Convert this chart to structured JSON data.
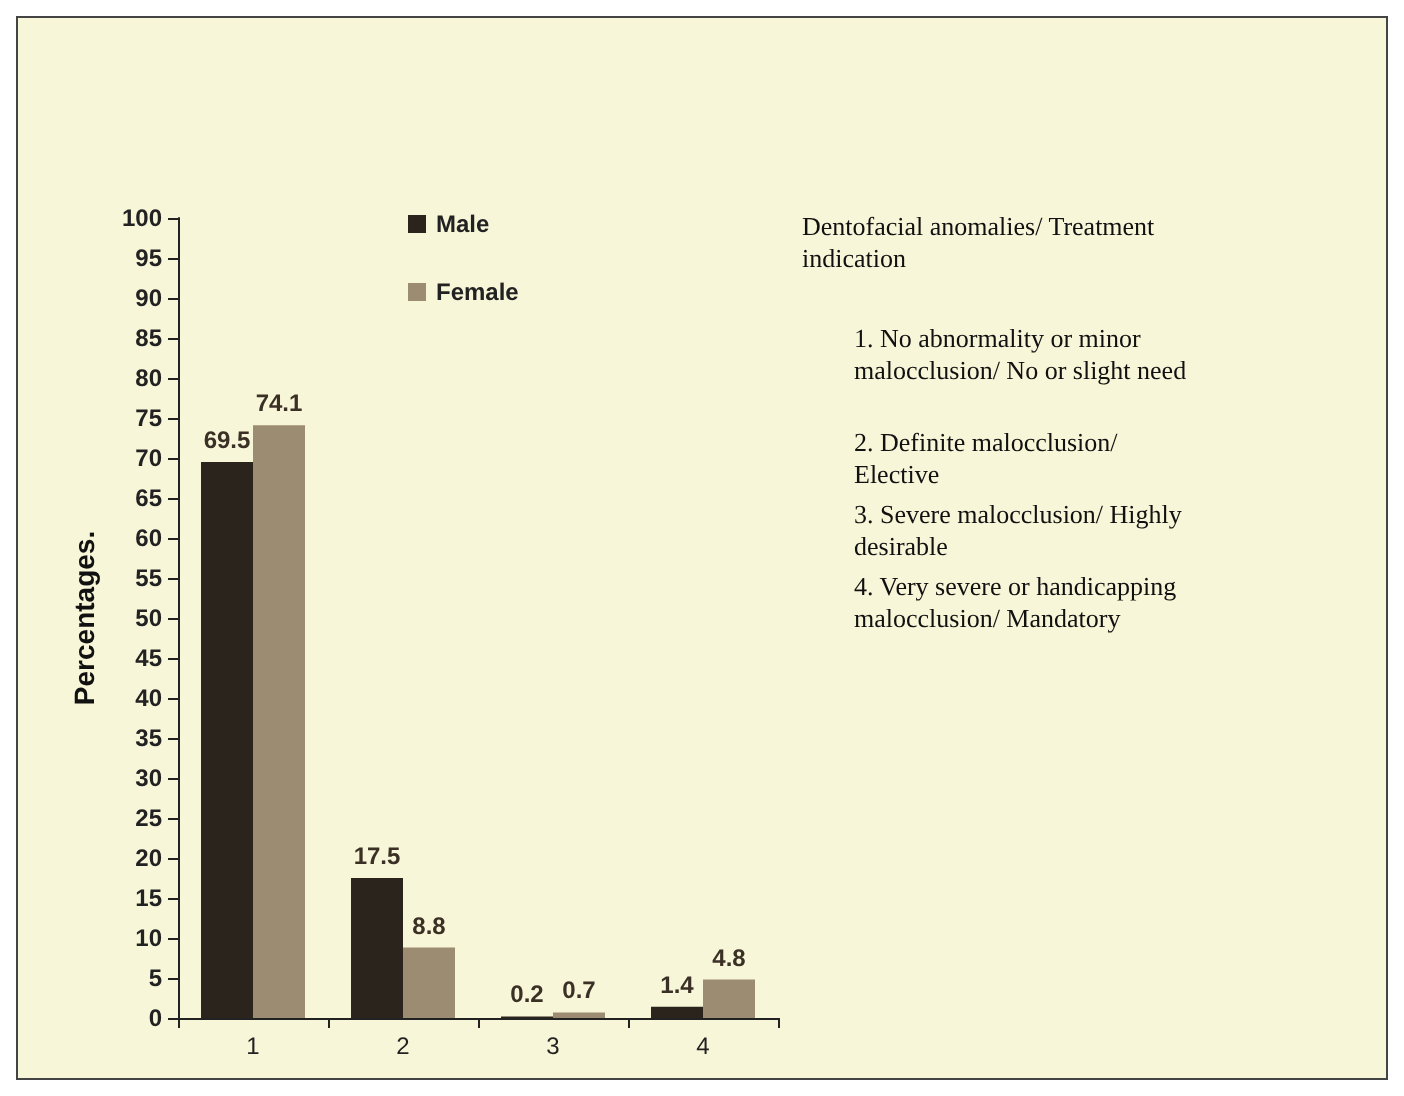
{
  "chart_data": {
    "type": "bar",
    "ylabel": "Percentages.",
    "categories": [
      "1",
      "2",
      "3",
      "4"
    ],
    "series": [
      {
        "name": "Male",
        "color": "#2b241c",
        "values": [
          69.5,
          17.5,
          0.2,
          1.4
        ]
      },
      {
        "name": "Female",
        "color": "#9c8c72",
        "values": [
          74.1,
          8.8,
          0.7,
          4.8
        ]
      }
    ],
    "ylim": [
      0,
      100
    ],
    "yticks": [
      0,
      5,
      10,
      15,
      20,
      25,
      30,
      35,
      40,
      45,
      50,
      55,
      60,
      65,
      70,
      75,
      80,
      85,
      90,
      95,
      100
    ],
    "data_labels": true,
    "grid": false,
    "legend": "top",
    "annotations": [
      "Dentofacial anomalies/ Treatment indication",
      "1. No abnormality or minor malocclusion/ No or slight need",
      "2. Definite malocclusion/ Elective",
      "3. Severe malocclusion/ Highly desirable",
      "4. Very severe or handicapping malocclusion/ Mandatory"
    ]
  }
}
